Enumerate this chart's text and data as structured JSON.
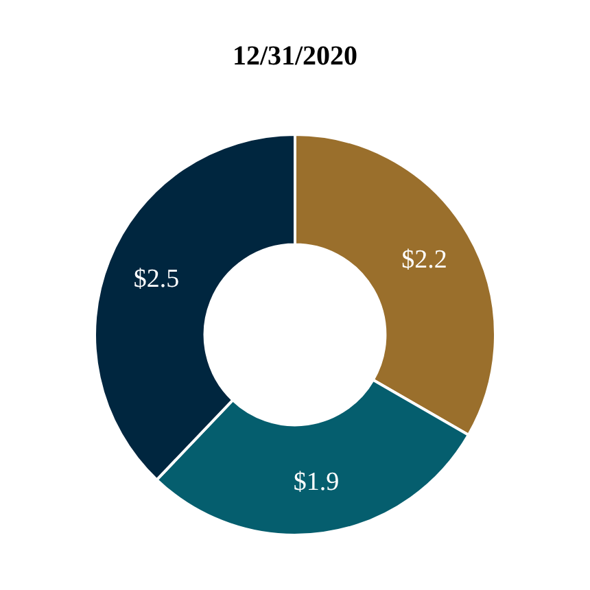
{
  "chart_data": {
    "type": "donut",
    "title": "12/31/2020",
    "categories": [
      null,
      null,
      null
    ],
    "values": [
      2.2,
      1.9,
      2.5
    ],
    "colors": [
      "#9a6f2c",
      "#055e6e",
      "#00263f"
    ],
    "value_labels": [
      "$2.2",
      "$1.9",
      "$2.5"
    ]
  }
}
